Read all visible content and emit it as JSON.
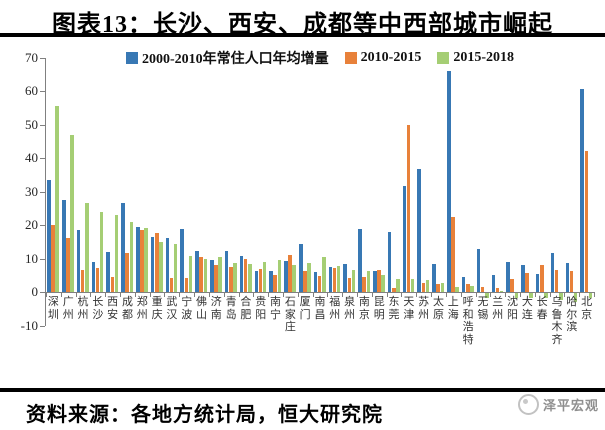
{
  "title": "图表13：长沙、西安、成都等中西部城市崛起",
  "source_line": "资料来源：各地方统计局，恒大研究院",
  "watermark": "泽平宏观",
  "colors": {
    "blue": "#3878B4",
    "orange": "#E8813A",
    "green": "#A5CE74"
  },
  "chart_data": {
    "type": "bar",
    "title": "图表13：长沙、西安、成都等中西部城市崛起",
    "grid": false,
    "legend_position": "top-center-inside",
    "ylim": [
      -10,
      70
    ],
    "yticks": [
      70,
      60,
      50,
      40,
      30,
      20,
      10,
      0,
      -10
    ],
    "xlabel": "",
    "ylabel": "",
    "categories": [
      "深圳",
      "广州",
      "杭州",
      "长沙",
      "西安",
      "成都",
      "郑州",
      "重庆",
      "武汉",
      "宁波",
      "佛山",
      "济南",
      "青岛",
      "合肥",
      "贵阳",
      "南宁",
      "石家庄",
      "厦门",
      "南昌",
      "福州",
      "泉州",
      "南京",
      "昆明",
      "东莞",
      "天津",
      "苏州",
      "太原",
      "上海",
      "呼和浩特",
      "无锡",
      "兰州",
      "沈阳",
      "大连",
      "长春",
      "乌鲁木齐",
      "哈尔滨",
      "北京"
    ],
    "series": [
      {
        "name": "2000-2010年常住人口年均增量",
        "color_key": "blue",
        "values": [
          33.5,
          27.5,
          18.5,
          9,
          12,
          26.5,
          19.5,
          16.3,
          16.2,
          18.8,
          12.2,
          9.7,
          12.2,
          10.8,
          6.3,
          6.3,
          9.2,
          14.2,
          6.1,
          7.5,
          8.5,
          18.9,
          6.3,
          17.8,
          31.5,
          36.8,
          8.5,
          66,
          4.6,
          12.9,
          5.2,
          8.9,
          8,
          5.4,
          11.7,
          8.8,
          60.5
        ]
      },
      {
        "name": "2010-2015",
        "color_key": "orange",
        "values": [
          20,
          16,
          6.5,
          7.3,
          4.6,
          11.7,
          18.5,
          17.7,
          4.1,
          4.3,
          10.5,
          8.2,
          7.5,
          9.9,
          6.8,
          5.1,
          11,
          6.3,
          4.9,
          7.2,
          4.3,
          4.6,
          6.6,
          1.2,
          49.8,
          2.8,
          2.4,
          22.4,
          2.3,
          1.6,
          1.2,
          4,
          5.8,
          8,
          6.7,
          6.3,
          42
        ]
      },
      {
        "name": "2015-2018",
        "color_key": "green",
        "values": [
          55.5,
          47,
          26.5,
          24,
          23,
          21,
          19,
          15,
          14.2,
          10.8,
          9.8,
          10.3,
          8.8,
          8.4,
          9,
          9.5,
          8,
          8.7,
          10.3,
          7.8,
          6.5,
          6.3,
          5.2,
          4,
          4,
          3.6,
          2.8,
          1.4,
          1.8,
          -1.6,
          0.4,
          -1.4,
          -1.6,
          -1.4,
          -2.2,
          -2.6,
          -1.4
        ]
      }
    ]
  }
}
